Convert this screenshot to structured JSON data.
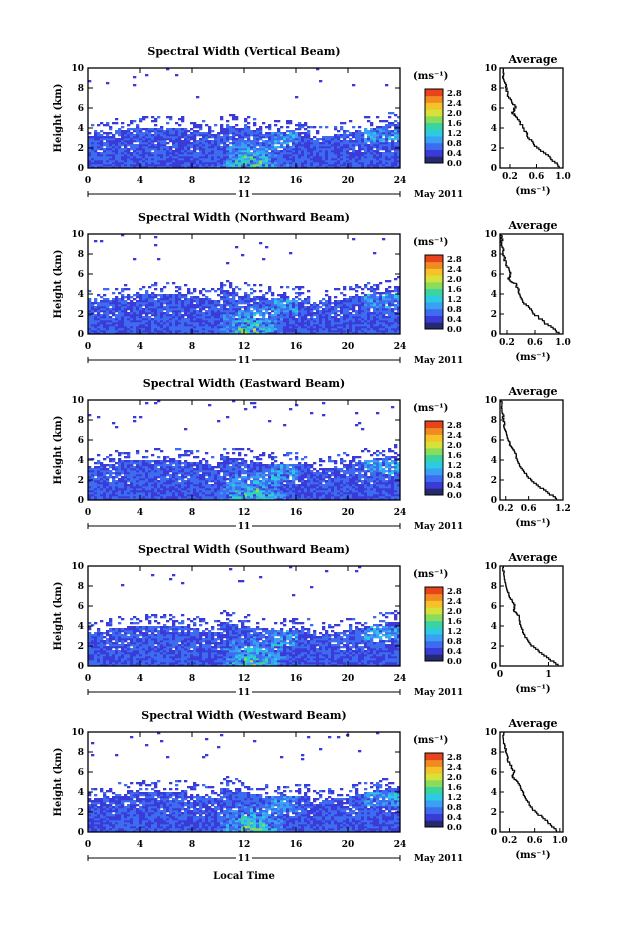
{
  "figure": {
    "xlabel": "Local Time",
    "date_label": "May 2011",
    "day_label": "11"
  },
  "colors": [
    "#252a6e",
    "#3a3ad8",
    "#3d6cf0",
    "#3aa0f4",
    "#2ccbe2",
    "#3ad4a0",
    "#8adc5a",
    "#d6e23a",
    "#f6c22a",
    "#f28a22",
    "#e8441c"
  ],
  "chart_data": [
    {
      "type": "heatmap",
      "title": "Spectral Width (Vertical Beam)",
      "ylabel": "Height (km)",
      "xlim": [
        0,
        24
      ],
      "ylim": [
        0,
        10
      ],
      "xticks": [
        0,
        4,
        8,
        12,
        16,
        20,
        24
      ],
      "yticks": [
        0,
        2,
        4,
        6,
        8,
        10
      ],
      "colorbar": {
        "unit": "(ms⁻¹)",
        "ticks": [
          "0.0",
          "0.4",
          "0.8",
          "1.2",
          "1.6",
          "2.0",
          "2.4",
          "2.8"
        ]
      },
      "profile": {
        "title": "Average",
        "xlabel": "(ms⁻¹)",
        "xlim": [
          0.05,
          1.0
        ],
        "xticks": [
          "0.2",
          "0.6",
          "1.0"
        ],
        "xtick_values": [
          0.2,
          0.6,
          1.0
        ],
        "points": [
          [
            0.95,
            0
          ],
          [
            0.8,
            1
          ],
          [
            0.6,
            2
          ],
          [
            0.48,
            3
          ],
          [
            0.4,
            4
          ],
          [
            0.3,
            5
          ],
          [
            0.24,
            5.5
          ],
          [
            0.28,
            6
          ],
          [
            0.18,
            7
          ],
          [
            0.14,
            8
          ],
          [
            0.1,
            9
          ],
          [
            0.08,
            10
          ]
        ]
      }
    },
    {
      "type": "heatmap",
      "title": "Spectral Width (Northward Beam)",
      "ylabel": "Height (km)",
      "xlim": [
        0,
        24
      ],
      "ylim": [
        0,
        10
      ],
      "xticks": [
        0,
        4,
        8,
        12,
        16,
        20,
        24
      ],
      "yticks": [
        0,
        2,
        4,
        6,
        8,
        10
      ],
      "colorbar": {
        "unit": "(ms⁻¹)",
        "ticks": [
          "0.0",
          "0.4",
          "0.8",
          "1.2",
          "1.6",
          "2.0",
          "2.4",
          "2.8"
        ]
      },
      "profile": {
        "title": "Average",
        "xlabel": "(ms⁻¹)",
        "xlim": [
          0.1,
          1.0
        ],
        "xticks": [
          "0.2",
          "0.6",
          "1.0"
        ],
        "xtick_values": [
          0.2,
          0.6,
          1.0
        ],
        "points": [
          [
            0.95,
            0
          ],
          [
            0.75,
            1
          ],
          [
            0.58,
            2
          ],
          [
            0.45,
            3
          ],
          [
            0.38,
            4
          ],
          [
            0.32,
            5
          ],
          [
            0.22,
            5.4
          ],
          [
            0.26,
            6
          ],
          [
            0.18,
            7
          ],
          [
            0.15,
            8
          ],
          [
            0.13,
            9
          ],
          [
            0.12,
            10
          ]
        ]
      }
    },
    {
      "type": "heatmap",
      "title": "Spectral Width (Eastward Beam)",
      "ylabel": "Height (km)",
      "xlim": [
        0,
        24
      ],
      "ylim": [
        0,
        10
      ],
      "xticks": [
        0,
        4,
        8,
        12,
        16,
        20,
        24
      ],
      "yticks": [
        0,
        2,
        4,
        6,
        8,
        10
      ],
      "colorbar": {
        "unit": "(ms⁻¹)",
        "ticks": [
          "0.0",
          "0.4",
          "0.8",
          "1.2",
          "1.6",
          "2.0",
          "2.4",
          "2.8"
        ]
      },
      "profile": {
        "title": "Average",
        "xlabel": "(ms⁻¹)",
        "xlim": [
          0.1,
          1.2
        ],
        "xticks": [
          "0.2",
          "0.6",
          "1.2"
        ],
        "xtick_values": [
          0.2,
          0.6,
          1.2
        ],
        "points": [
          [
            1.1,
            0
          ],
          [
            0.85,
            1
          ],
          [
            0.62,
            2
          ],
          [
            0.48,
            3
          ],
          [
            0.4,
            4
          ],
          [
            0.34,
            5
          ],
          [
            0.28,
            5.5
          ],
          [
            0.24,
            6
          ],
          [
            0.18,
            7
          ],
          [
            0.16,
            8
          ],
          [
            0.14,
            9
          ],
          [
            0.13,
            10
          ]
        ]
      }
    },
    {
      "type": "heatmap",
      "title": "Spectral Width (Southward Beam)",
      "ylabel": "Height (km)",
      "xlim": [
        0,
        24
      ],
      "ylim": [
        0,
        10
      ],
      "xticks": [
        0,
        4,
        8,
        12,
        16,
        20,
        24
      ],
      "yticks": [
        0,
        2,
        4,
        6,
        8,
        10
      ],
      "colorbar": {
        "unit": "(ms⁻¹)",
        "ticks": [
          "0.0",
          "0.4",
          "0.8",
          "1.2",
          "1.6",
          "2.0",
          "2.4",
          "2.8"
        ]
      },
      "profile": {
        "title": "Average",
        "xlabel": "(ms⁻¹)",
        "xlim": [
          0,
          1.3
        ],
        "xticks": [
          "0",
          "1"
        ],
        "xtick_values": [
          0,
          1
        ],
        "points": [
          [
            1.2,
            0
          ],
          [
            0.9,
            1
          ],
          [
            0.65,
            2
          ],
          [
            0.5,
            3
          ],
          [
            0.42,
            4
          ],
          [
            0.38,
            5
          ],
          [
            0.28,
            5.5
          ],
          [
            0.3,
            6
          ],
          [
            0.18,
            7
          ],
          [
            0.12,
            8
          ],
          [
            0.08,
            9
          ],
          [
            0.06,
            10
          ]
        ]
      }
    },
    {
      "type": "heatmap",
      "title": "Spectral Width (Westward Beam)",
      "ylabel": "Height (km)",
      "xlim": [
        0,
        24
      ],
      "ylim": [
        0,
        10
      ],
      "xticks": [
        0,
        4,
        8,
        12,
        16,
        20,
        24
      ],
      "yticks": [
        0,
        2,
        4,
        6,
        8,
        10
      ],
      "colorbar": {
        "unit": "(ms⁻¹)",
        "ticks": [
          "0.0",
          "0.4",
          "0.8",
          "1.2",
          "1.6",
          "2.0",
          "2.4",
          "2.8"
        ]
      },
      "profile": {
        "title": "Average",
        "xlabel": "(ms⁻¹)",
        "xlim": [
          0.05,
          1.05
        ],
        "xticks": [
          "0.2",
          "0.6",
          "1.0"
        ],
        "xtick_values": [
          0.2,
          0.6,
          1.0
        ],
        "points": [
          [
            0.95,
            0
          ],
          [
            0.8,
            1
          ],
          [
            0.6,
            2
          ],
          [
            0.48,
            3
          ],
          [
            0.4,
            4
          ],
          [
            0.33,
            5
          ],
          [
            0.24,
            5.5
          ],
          [
            0.27,
            6
          ],
          [
            0.18,
            7
          ],
          [
            0.14,
            8
          ],
          [
            0.11,
            9
          ],
          [
            0.1,
            10
          ]
        ]
      }
    }
  ]
}
